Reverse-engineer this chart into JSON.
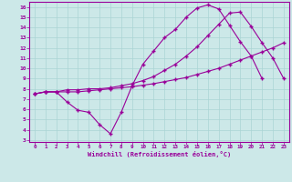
{
  "xlabel": "Windchill (Refroidissement éolien,°C)",
  "bg_color": "#cce8e8",
  "line_color": "#990099",
  "grid_color": "#aad4d4",
  "xlim": [
    -0.5,
    23.5
  ],
  "ylim": [
    2.8,
    16.5
  ],
  "xticks": [
    0,
    1,
    2,
    3,
    4,
    5,
    6,
    7,
    8,
    9,
    10,
    11,
    12,
    13,
    14,
    15,
    16,
    17,
    18,
    19,
    20,
    21,
    22,
    23
  ],
  "yticks": [
    3,
    4,
    5,
    6,
    7,
    8,
    9,
    10,
    11,
    12,
    13,
    14,
    15,
    16
  ],
  "curve1_x": [
    0,
    1,
    2,
    3,
    4,
    5,
    6,
    7,
    8,
    9,
    10,
    11,
    12,
    13,
    14,
    15,
    16,
    17,
    18,
    19,
    20,
    21,
    22,
    23
  ],
  "curve1_y": [
    7.5,
    7.7,
    7.7,
    7.7,
    7.7,
    7.8,
    7.9,
    8.0,
    8.1,
    8.2,
    8.35,
    8.5,
    8.7,
    8.9,
    9.1,
    9.4,
    9.7,
    10.0,
    10.4,
    10.8,
    11.2,
    11.6,
    12.0,
    12.5
  ],
  "curve2_x": [
    0,
    1,
    2,
    3,
    4,
    5,
    6,
    7,
    8,
    9,
    10,
    11,
    12,
    13,
    14,
    15,
    16,
    17,
    18,
    19,
    20,
    21
  ],
  "curve2_y": [
    7.5,
    7.7,
    7.7,
    6.7,
    5.9,
    5.7,
    4.5,
    3.6,
    5.7,
    8.3,
    10.4,
    11.7,
    13.0,
    13.8,
    15.0,
    15.9,
    16.2,
    15.8,
    14.2,
    12.6,
    11.2,
    9.0
  ],
  "curve3_x": [
    0,
    1,
    2,
    3,
    4,
    5,
    6,
    7,
    8,
    9,
    10,
    11,
    12,
    13,
    14,
    15,
    16,
    17,
    18,
    19,
    20,
    21,
    22,
    23
  ],
  "curve3_y": [
    7.5,
    7.7,
    7.7,
    7.9,
    7.9,
    8.0,
    8.0,
    8.1,
    8.3,
    8.5,
    8.8,
    9.2,
    9.8,
    10.4,
    11.2,
    12.1,
    13.2,
    14.3,
    15.4,
    15.5,
    14.1,
    12.5,
    11.0,
    9.0
  ]
}
